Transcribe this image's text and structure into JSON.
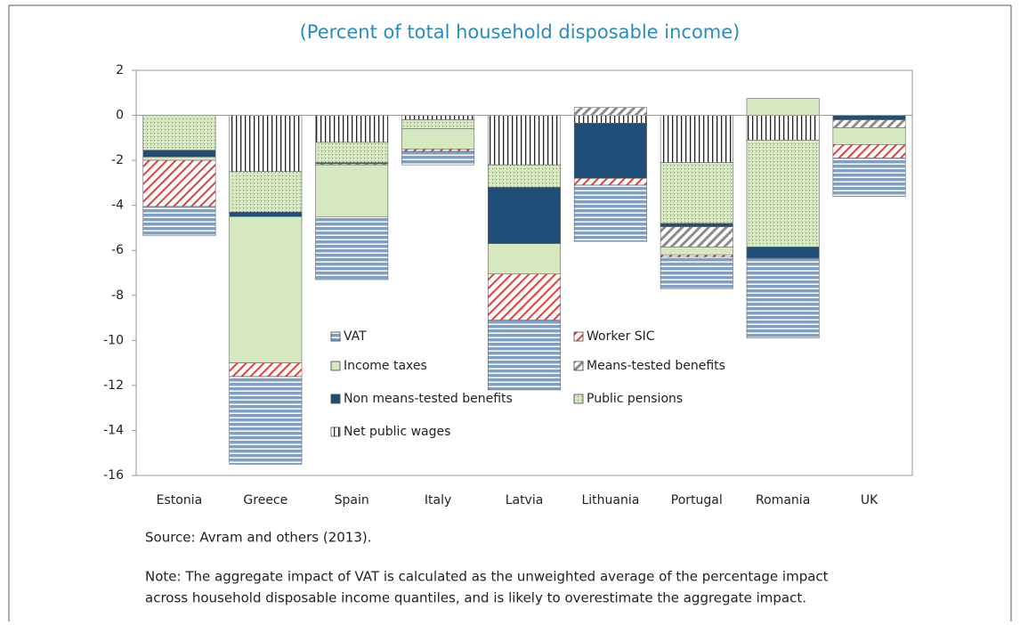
{
  "chart_data": {
    "type": "bar",
    "stacked": true,
    "title": "(Percent of total household disposable income)",
    "categories": [
      "Estonia",
      "Greece",
      "Spain",
      "Italy",
      "Latvia",
      "Lithuania",
      "Portugal",
      "Romania",
      "UK"
    ],
    "series": [
      {
        "name": "VAT",
        "color": "#7f9fc4",
        "values": [
          -1.3,
          -3.9,
          -2.8,
          -0.6,
          -3.1,
          -2.5,
          -1.4,
          -3.55,
          -1.7
        ]
      },
      {
        "name": "Worker SIC",
        "color": "#e0413c",
        "values": [
          -2.05,
          -0.6,
          0,
          -0.1,
          -2.05,
          -0.3,
          -0.1,
          0,
          -0.6
        ]
      },
      {
        "name": "Income taxes",
        "color": "#d5e8c0",
        "values": [
          -0.15,
          -6.5,
          -2.3,
          -0.9,
          -1.35,
          0,
          -0.35,
          0.75,
          -0.75
        ]
      },
      {
        "name": "Means-tested benefits",
        "color": "#8c8c8c",
        "values": [
          0,
          0,
          -0.05,
          0,
          0,
          0.35,
          -0.9,
          0,
          -0.35
        ]
      },
      {
        "name": "Non means-tested benefits",
        "color": "#1f4e79",
        "values": [
          -0.3,
          -0.2,
          -0.05,
          0,
          -2.5,
          -2.45,
          -0.15,
          -0.5,
          -0.2
        ]
      },
      {
        "name": "Public pensions",
        "color": "#d5e8c0",
        "values": [
          -1.55,
          -1.8,
          -0.9,
          -0.4,
          -1.0,
          0,
          -2.7,
          -4.75,
          0
        ]
      },
      {
        "name": "Net public wages",
        "color": "#222222",
        "values": [
          0,
          -2.5,
          -1.2,
          -0.2,
          -2.2,
          -0.35,
          -2.1,
          -1.1,
          0
        ]
      }
    ],
    "ylim": [
      -16,
      2
    ],
    "yticks": [
      2,
      0,
      -2,
      -4,
      -6,
      -8,
      -10,
      -12,
      -14,
      -16
    ],
    "legend": "inside",
    "source": "Source: Avram and others (2013).",
    "note": [
      "Note: The aggregate impact of VAT is calculated as the unweighted average of the percentage impact",
      "across household disposable income quantiles, and is likely to overestimate the aggregate impact."
    ]
  }
}
